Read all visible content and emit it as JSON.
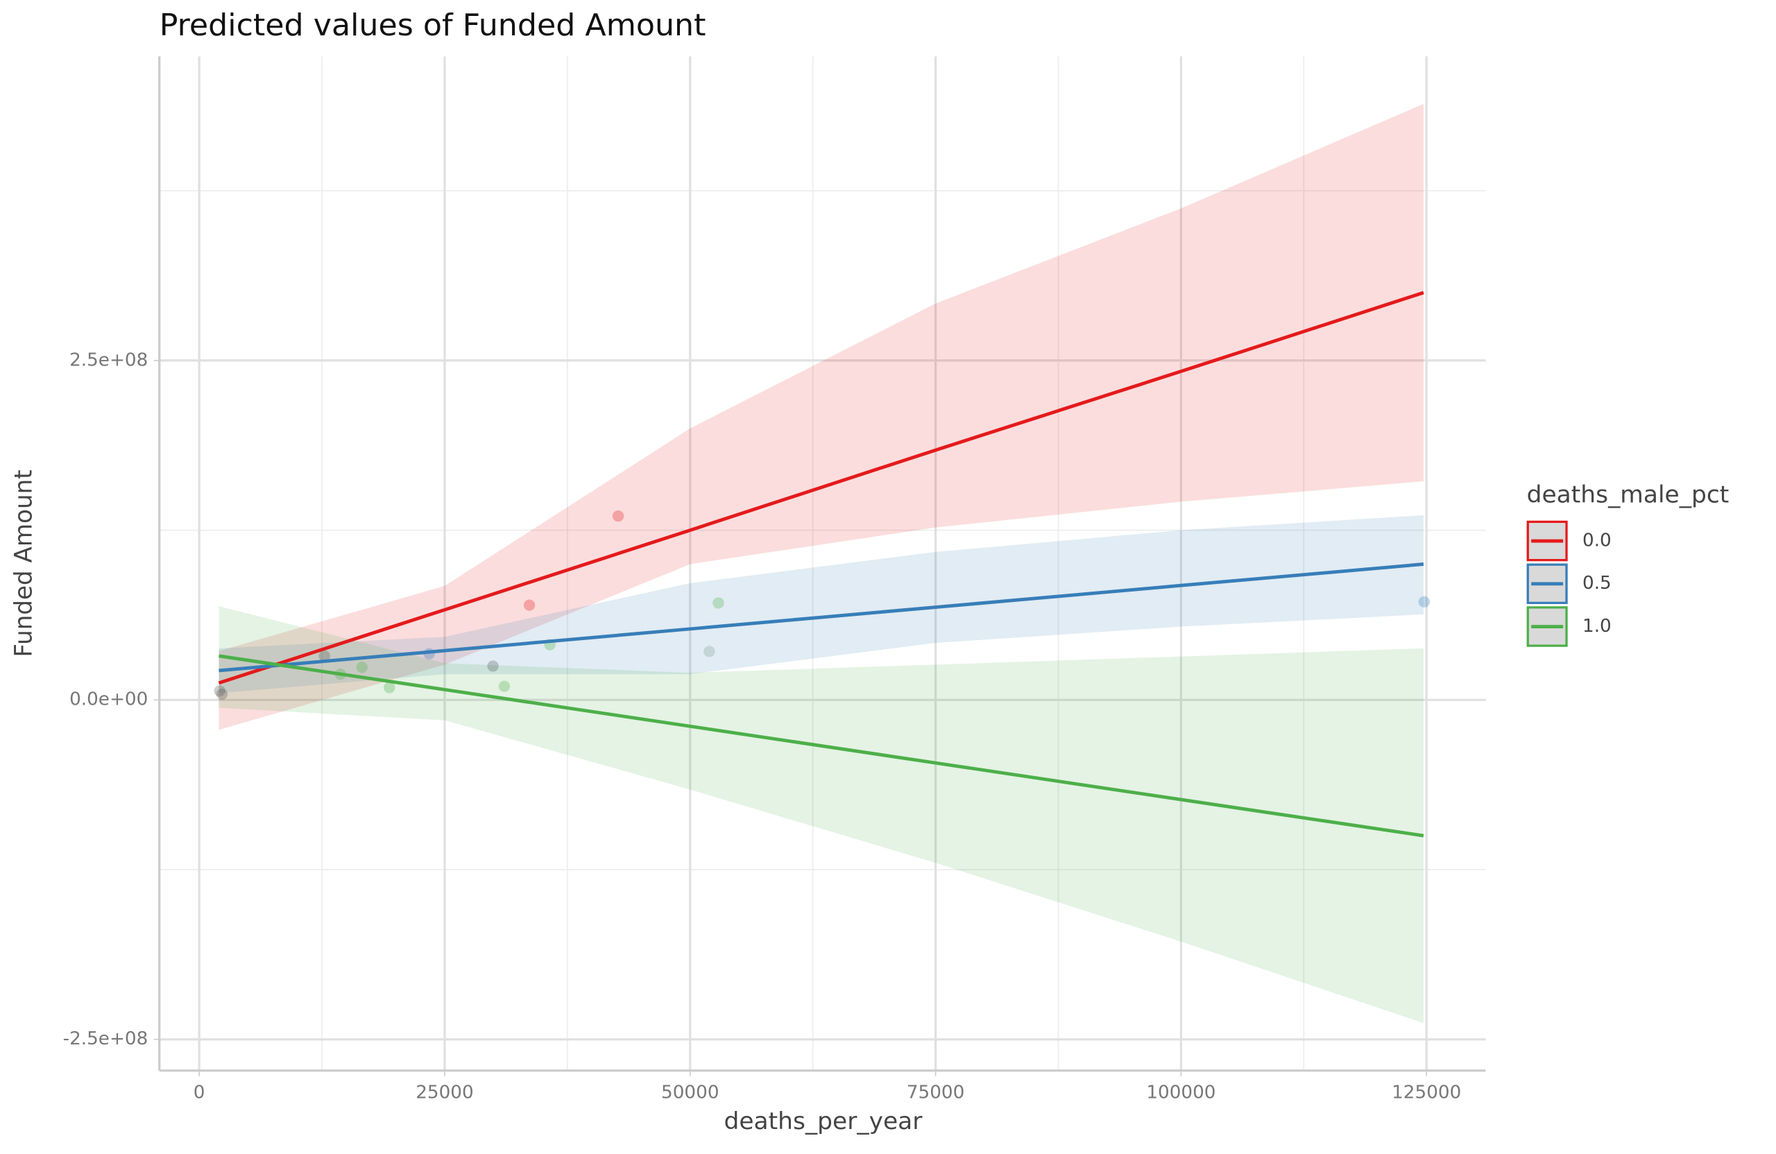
{
  "chart_data": {
    "type": "line",
    "title": "Predicted values of Funded Amount",
    "xlabel": "deaths_per_year",
    "ylabel": "Funded Amount",
    "legend_title": "deaths_male_pct",
    "legend": "right",
    "grid": true,
    "xlim": [
      -4058,
      131030
    ],
    "ylim": [
      -273000000,
      474000000
    ],
    "xticks": [
      0,
      25000,
      50000,
      75000,
      100000,
      125000
    ],
    "minor_xticks": [
      12500,
      37500,
      62500,
      87500,
      112500
    ],
    "yticks": [
      {
        "value": -250000000,
        "label": "-2.5e+08"
      },
      {
        "value": 0,
        "label": "0.0e+00"
      },
      {
        "value": 250000000,
        "label": "2.5e+08"
      }
    ],
    "minor_yticks": [
      -125000000,
      125000000,
      375000000
    ],
    "series": [
      {
        "name": "0.0",
        "color": "#e41a1c",
        "x": [
          2000,
          25000,
          50000,
          75000,
          100000,
          124700
        ],
        "values": [
          12500000,
          66400000,
          125000000,
          184000000,
          242000000,
          300000000
        ],
        "upper": [
          36000000,
          84000000,
          200000000,
          292000000,
          362000000,
          439000000
        ],
        "lower": [
          -22000000,
          26000000,
          100000000,
          127000000,
          146000000,
          161000000
        ]
      },
      {
        "name": "0.5",
        "color": "#377eb8",
        "x": [
          2000,
          25000,
          50000,
          75000,
          100000,
          124700
        ],
        "values": [
          21600000,
          36300000,
          52300000,
          68300000,
          84300000,
          100000000
        ],
        "upper": [
          38000000,
          46500000,
          86000000,
          109000000,
          125000000,
          136000000
        ],
        "lower": [
          5000000,
          19000000,
          19000000,
          42000000,
          54000000,
          63000000
        ]
      },
      {
        "name": "1.0",
        "color": "#4daf4a",
        "x": [
          2000,
          25000,
          50000,
          75000,
          100000,
          124700
        ],
        "values": [
          32400000,
          7600000,
          -19400000,
          -46400000,
          -73400000,
          -100000000
        ],
        "upper": [
          69000000,
          27000000,
          20000000,
          26000000,
          32000000,
          38000000
        ],
        "lower": [
          -5800000,
          -15000000,
          -66000000,
          -120000000,
          -178000000,
          -238000000
        ]
      }
    ],
    "points": {
      "x": [
        42672,
        33627,
        52876,
        51948,
        35715,
        29917,
        31076,
        19365,
        14378,
        23423,
        124768,
        2087,
        2319,
        12755,
        16582
      ],
      "y": [
        135400000,
        69800000,
        71400000,
        35700000,
        40700000,
        24900000,
        10000000,
        9100000,
        19000000,
        34000000,
        72300000,
        6600000,
        4200000,
        32400000,
        24000000
      ],
      "colors": [
        "#e41a1c",
        "#e41a1c",
        "#4daf4a",
        "#7f9f8f",
        "#4daf4a",
        "#555555",
        "#4daf4a",
        "#4daf4a",
        "#4daf4a",
        "#377eb8",
        "#377eb8",
        "#555555",
        "#555555",
        "#555555",
        "#4daf4a"
      ]
    }
  }
}
